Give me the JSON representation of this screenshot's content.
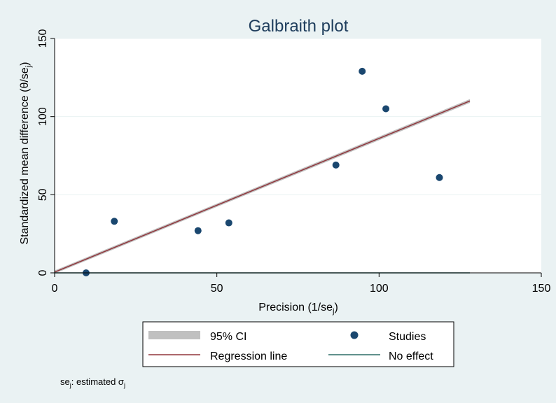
{
  "chart_data": {
    "type": "scatter",
    "title": "Galbraith plot",
    "xlabel_main": "Precision (1/se",
    "xlabel_sub": "j",
    "xlabel_tail": ")",
    "ylabel_main": "Standardized mean difference (θ/se",
    "ylabel_sub": "j",
    "ylabel_tail": ")",
    "xlim": [
      0,
      150
    ],
    "ylim": [
      0,
      150
    ],
    "xticks": [
      0,
      50,
      100,
      150
    ],
    "yticks": [
      0,
      50,
      100,
      150
    ],
    "x_tick_labels": [
      "0",
      "50",
      "100",
      "150"
    ],
    "y_tick_labels": [
      "0",
      "50",
      "100",
      "150"
    ],
    "grid": "horizontal",
    "series": [
      {
        "name": "Studies",
        "points": [
          {
            "x": 9.7,
            "y": 0
          },
          {
            "x": 18.4,
            "y": 33
          },
          {
            "x": 44.2,
            "y": 27
          },
          {
            "x": 53.7,
            "y": 32
          },
          {
            "x": 86.7,
            "y": 69
          },
          {
            "x": 94.8,
            "y": 129
          },
          {
            "x": 102.1,
            "y": 105
          },
          {
            "x": 118.6,
            "y": 61
          }
        ]
      },
      {
        "name": "Regression line",
        "x": [
          0,
          128
        ],
        "y": [
          0.5,
          110
        ]
      },
      {
        "name": "No effect",
        "x": [
          0,
          128
        ],
        "y": [
          0,
          0
        ]
      },
      {
        "name": "95% CI",
        "x": [
          0,
          128
        ],
        "lower": [
          -0.5,
          108.8
        ],
        "upper": [
          1.5,
          111.2
        ]
      }
    ],
    "legend": {
      "position": "bottom",
      "entries": [
        "95% CI",
        "Studies",
        "Regression line",
        "No effect"
      ]
    },
    "colors": {
      "studies": "#1a476f",
      "regression": "#90353b",
      "no_effect": "#2d6d66",
      "ci": "#c0c0c0",
      "background": "#eaf2f3",
      "plot_area": "#ffffff",
      "grid": "#eaf2f3",
      "title": "#1e3d5c"
    }
  },
  "note": {
    "prefix": "se",
    "prefix_sub": "j",
    "text": ": estimated σ",
    "text_sub": "j"
  }
}
